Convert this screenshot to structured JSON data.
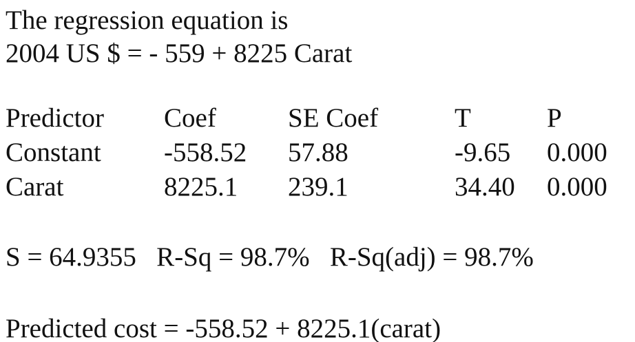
{
  "header": {
    "title": "The regression equation is",
    "equation": "2004 US $ = - 559 + 8225 Carat"
  },
  "table": {
    "columns": [
      "Predictor",
      "Coef",
      "SE Coef",
      "T",
      "P"
    ],
    "rows": [
      [
        "Constant",
        "-558.52",
        "57.88",
        "-9.65",
        "0.000"
      ],
      [
        "Carat",
        "8225.1",
        "239.1",
        "34.40",
        "0.000"
      ]
    ]
  },
  "summary": "S = 64.9355   R-Sq = 98.7%   R-Sq(adj) = 98.7%",
  "prediction": "Predicted cost = -558.52 + 8225.1(carat)"
}
